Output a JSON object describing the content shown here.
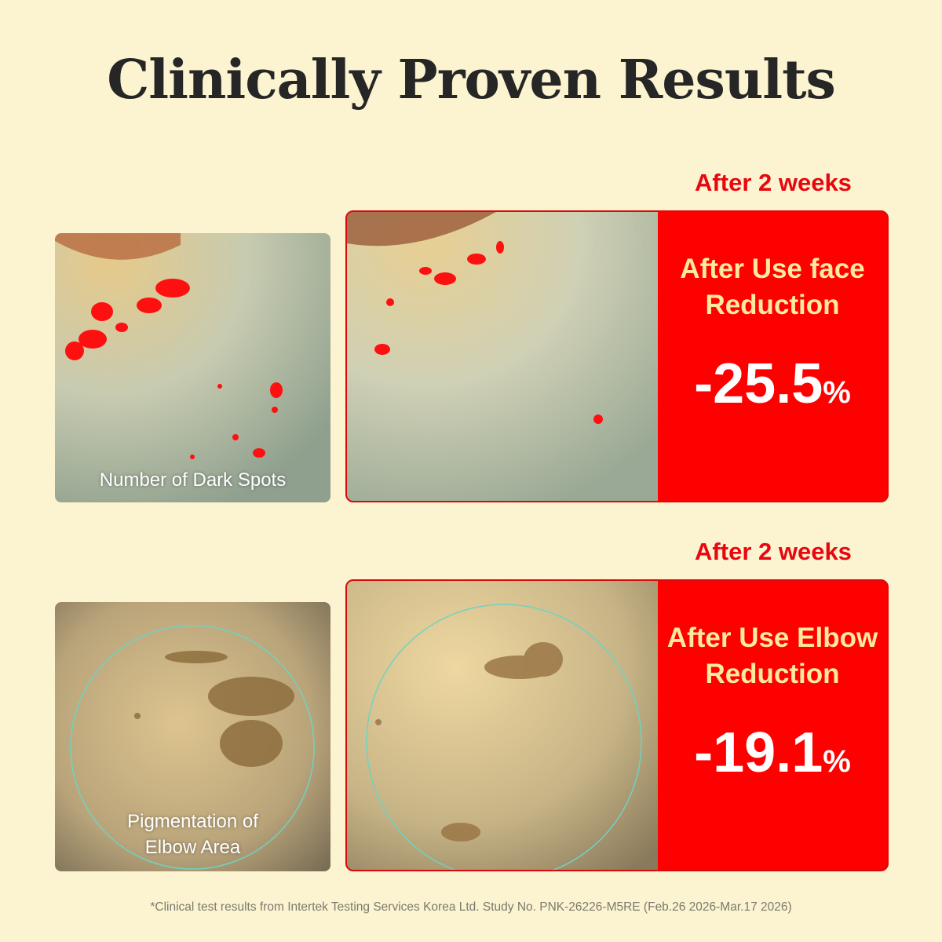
{
  "header": {
    "title": "Clinically Proven Results"
  },
  "panels": [
    {
      "period": "After 2 weeks",
      "before_label_lines": [
        "Number of Dark Spots"
      ],
      "result_lines": [
        "After Use face",
        "Reduction"
      ],
      "result_value": "-25.5",
      "result_unit": "%"
    },
    {
      "period": "After 2 weeks",
      "before_label_lines": [
        "Pigmentation of",
        "Elbow Area"
      ],
      "result_lines": [
        "After Use Elbow",
        "Reduction"
      ],
      "result_value": "-19.1",
      "result_unit": "%"
    }
  ],
  "footnote": "*Clinical test results from Intertek Testing Services Korea Ltd. Study No. PNK-26226-M5RE (Feb.26 2026-Mar.17 2026)"
}
